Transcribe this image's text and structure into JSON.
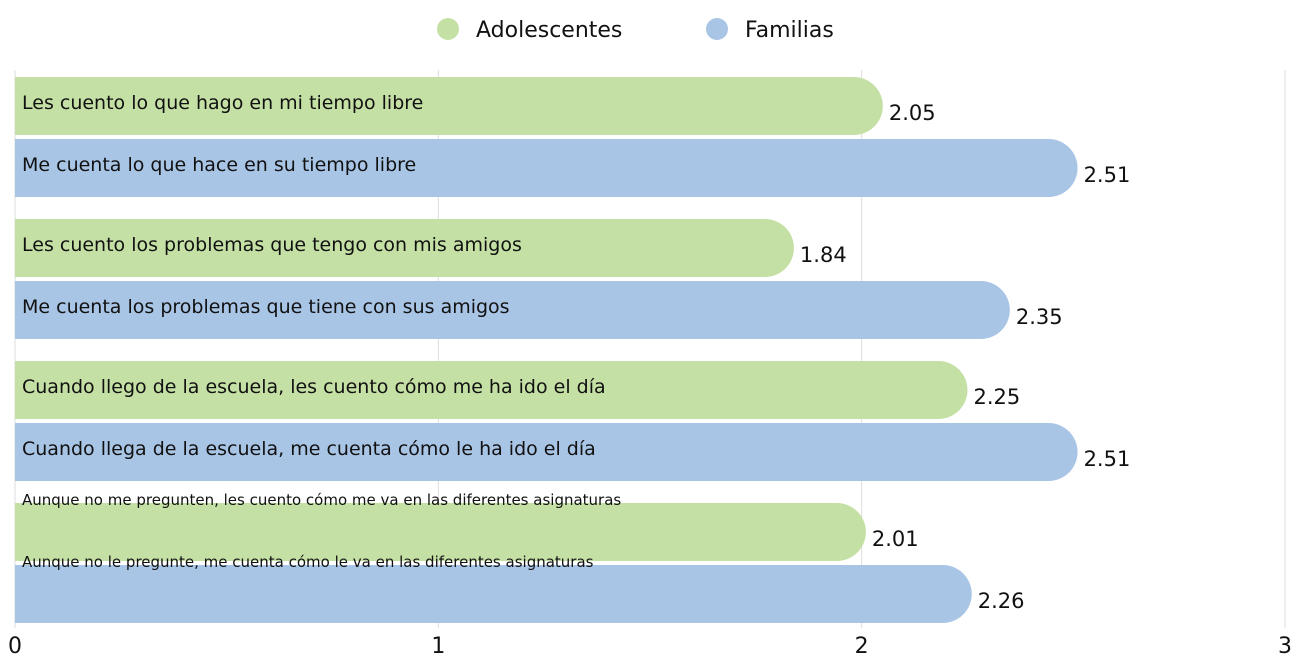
{
  "chart_data": {
    "type": "bar",
    "orientation": "horizontal",
    "series": [
      {
        "name": "Adolescentes",
        "color": "#c5e0a5",
        "labels": [
          "Les cuento lo que hago en mi tiempo libre",
          "Les cuento los problemas que tengo con mis amigos",
          "Cuando llego de la escuela, les cuento cómo me ha ido el día",
          "Aunque no me pregunten, les cuento cómo me va en las diferentes asignaturas"
        ],
        "values": [
          2.05,
          1.84,
          2.25,
          2.01
        ]
      },
      {
        "name": "Familias",
        "color": "#a9c5e6",
        "labels": [
          "Me cuenta lo que hace en su tiempo libre",
          "Me cuenta los problemas que tiene con sus amigos",
          "Cuando llega de la escuela, me cuenta cómo le ha ido el día",
          "Aunque no le pregunte, me cuenta  cómo le va en las diferentes asignaturas"
        ],
        "values": [
          2.51,
          2.35,
          2.51,
          2.26
        ]
      }
    ],
    "xlim": [
      0,
      3
    ],
    "xticks": [
      0,
      1,
      2,
      3
    ],
    "grid": true,
    "legend": "top"
  }
}
